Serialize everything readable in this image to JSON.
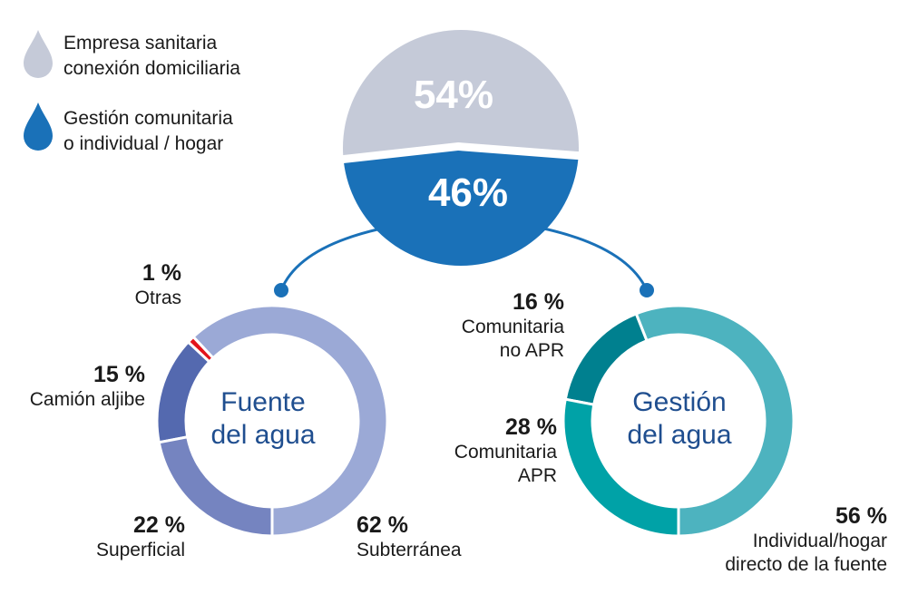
{
  "legend": [
    {
      "label1": "Empresa sanitaria",
      "label2": "conexión domiciliaria",
      "color": "#c5cad8"
    },
    {
      "label1": "Gestión comunitaria",
      "label2": "o individual / hogar",
      "color": "#1a71b8"
    }
  ],
  "chart_data": [
    {
      "type": "pie",
      "title": "",
      "categories": [
        "Empresa sanitaria conexión domiciliaria",
        "Gestión comunitaria o individual / hogar"
      ],
      "values": [
        54,
        46
      ],
      "labels": [
        "54%",
        "46%"
      ],
      "colors": [
        "#c5cad8",
        "#1a71b8"
      ]
    },
    {
      "type": "pie",
      "title": "Fuente del agua",
      "title1": "Fuente",
      "title2": "del agua",
      "categories": [
        "Subterránea",
        "Otras",
        "Camión aljibe",
        "Superficial"
      ],
      "values": [
        62,
        1,
        15,
        22
      ],
      "labels": [
        "62 %",
        "1 %",
        "15 %",
        "22 %"
      ],
      "colors": [
        "#9ba9d6",
        "#e3131b",
        "#5469af",
        "#7584c0"
      ]
    },
    {
      "type": "pie",
      "title": "Gestión del agua",
      "title1": "Gestión",
      "title2": "del agua",
      "categories": [
        "Individual/hogar directo de la fuente",
        "Comunitaria no APR",
        "Comunitaria APR"
      ],
      "cat_lines": [
        [
          "Individual/hogar",
          "directo de la fuente"
        ],
        [
          "Comunitaria",
          "no APR"
        ],
        [
          "Comunitaria",
          "APR"
        ]
      ],
      "values": [
        56,
        16,
        28
      ],
      "labels": [
        "56 %",
        "16 %",
        "28 %"
      ],
      "colors": [
        "#4db3bf",
        "#00808f",
        "#00a2a7"
      ]
    }
  ]
}
